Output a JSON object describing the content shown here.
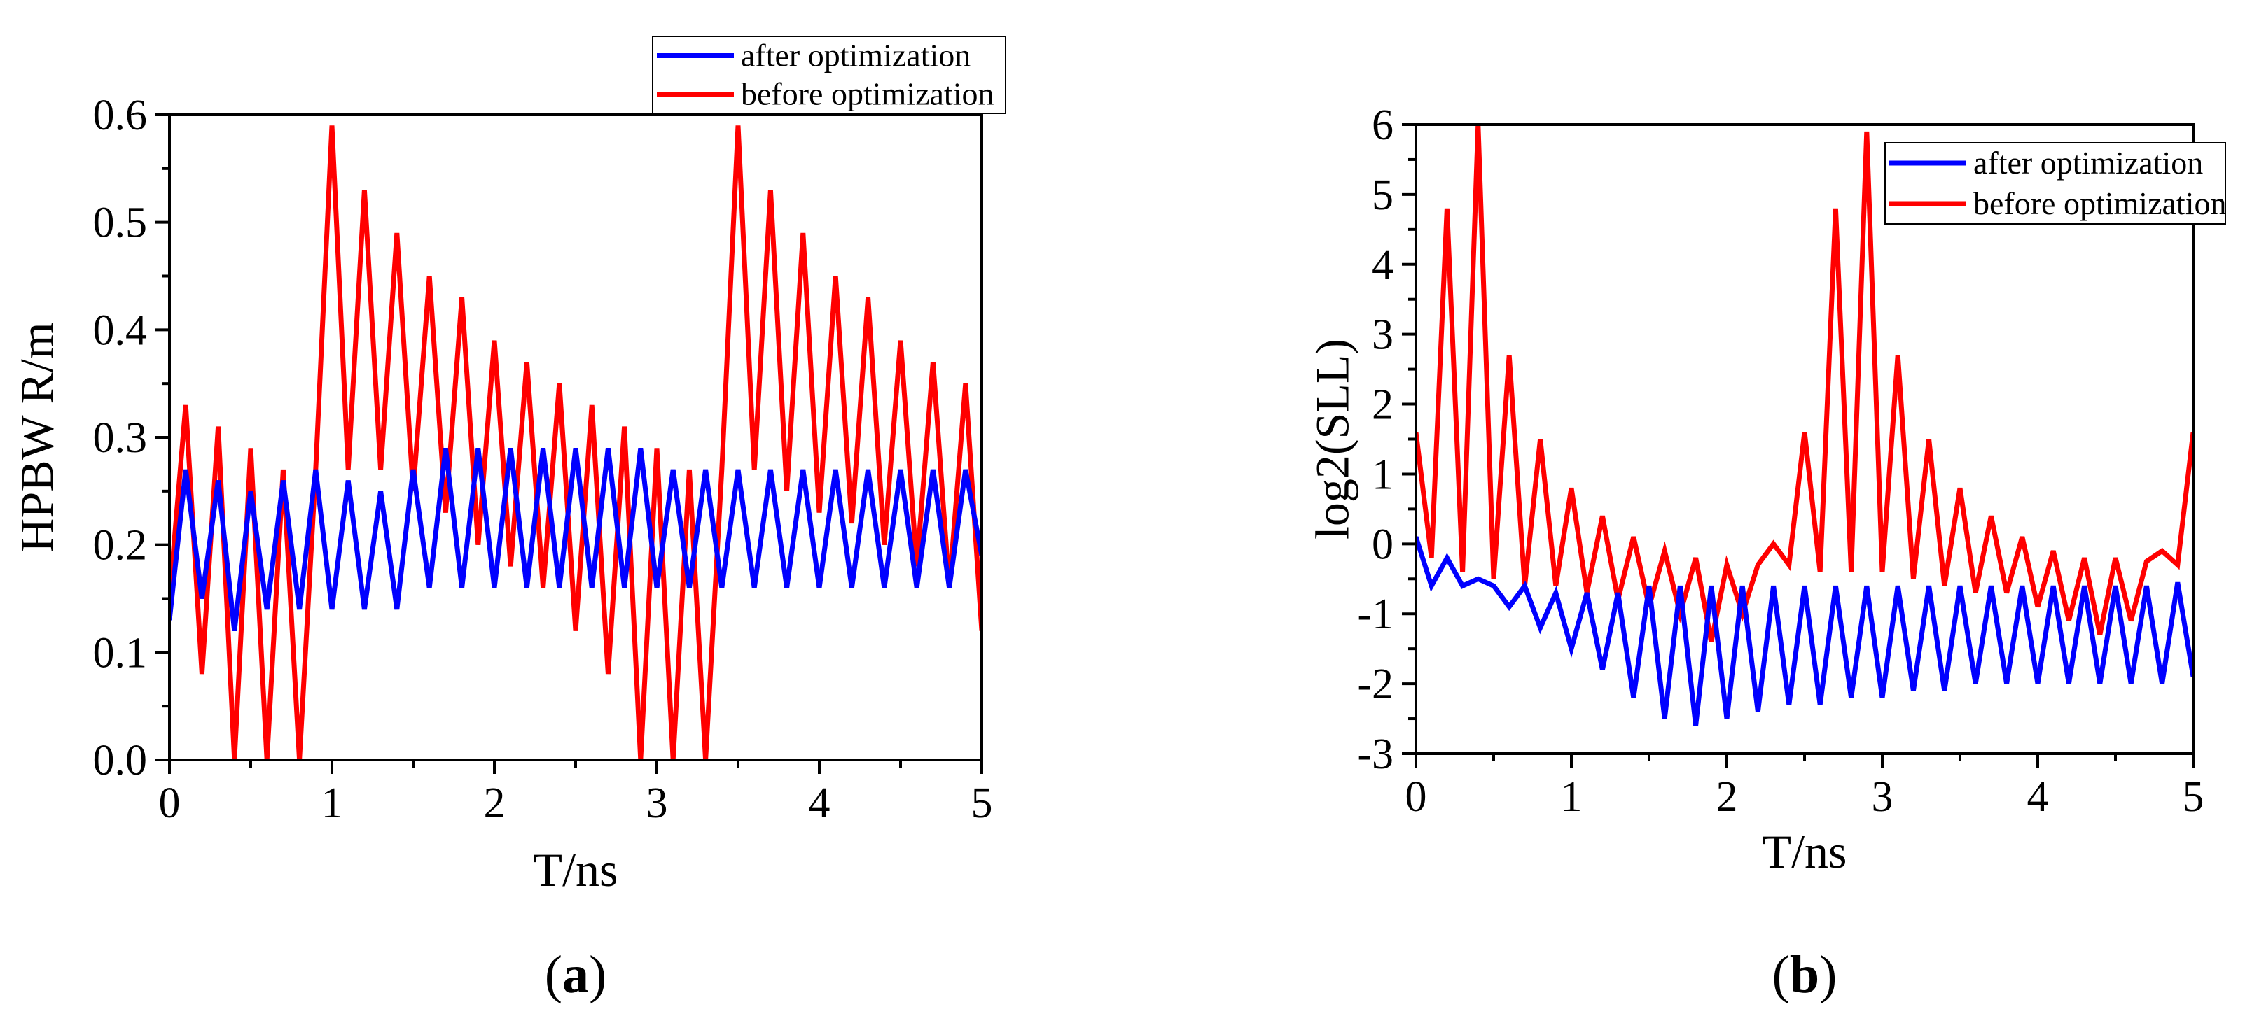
{
  "chart_data": [
    {
      "type": "line",
      "panel_caption": "a",
      "xlabel": "T/ns",
      "ylabel": "HPBW R/m",
      "xlim": [
        0,
        5
      ],
      "ylim": [
        0,
        0.6
      ],
      "xticks": [
        "0",
        "1",
        "2",
        "3",
        "4",
        "5"
      ],
      "yticks": [
        "0.0",
        "0.1",
        "0.2",
        "0.3",
        "0.4",
        "0.5",
        "0.6"
      ],
      "legend_position": "top-right",
      "grid": false,
      "series": [
        {
          "name": "after optimization",
          "color": "#0000ff",
          "x": [
            0,
            0.1,
            0.2,
            0.3,
            0.4,
            0.5,
            0.6,
            0.7,
            0.8,
            0.9,
            1.0,
            1.1,
            1.2,
            1.3,
            1.4,
            1.5,
            1.6,
            1.7,
            1.8,
            1.9,
            2.0,
            2.1,
            2.2,
            2.3,
            2.4,
            2.5,
            2.6,
            2.7,
            2.8,
            2.9,
            3.0,
            3.1,
            3.2,
            3.3,
            3.4,
            3.5,
            3.6,
            3.7,
            3.8,
            3.9,
            4.0,
            4.1,
            4.2,
            4.3,
            4.4,
            4.5,
            4.6,
            4.7,
            4.8,
            4.9,
            5.0
          ],
          "values": [
            0.13,
            0.27,
            0.15,
            0.26,
            0.12,
            0.25,
            0.14,
            0.26,
            0.14,
            0.27,
            0.14,
            0.26,
            0.14,
            0.25,
            0.14,
            0.27,
            0.16,
            0.29,
            0.16,
            0.29,
            0.16,
            0.29,
            0.16,
            0.29,
            0.16,
            0.29,
            0.16,
            0.29,
            0.16,
            0.29,
            0.16,
            0.27,
            0.16,
            0.27,
            0.16,
            0.27,
            0.16,
            0.27,
            0.16,
            0.27,
            0.16,
            0.27,
            0.16,
            0.27,
            0.16,
            0.27,
            0.16,
            0.27,
            0.16,
            0.27,
            0.19
          ]
        },
        {
          "name": "before optimization",
          "color": "#ff0000",
          "x": [
            0,
            0.1,
            0.2,
            0.3,
            0.4,
            0.5,
            0.6,
            0.7,
            0.8,
            0.9,
            1.0,
            1.1,
            1.2,
            1.3,
            1.4,
            1.5,
            1.6,
            1.7,
            1.8,
            1.9,
            2.0,
            2.1,
            2.2,
            2.3,
            2.4,
            2.5,
            2.6,
            2.7,
            2.8,
            2.9,
            3.0,
            3.1,
            3.2,
            3.3,
            3.4,
            3.5,
            3.6,
            3.7,
            3.8,
            3.9,
            4.0,
            4.1,
            4.2,
            4.3,
            4.4,
            4.5,
            4.6,
            4.7,
            4.8,
            4.9,
            5.0
          ],
          "values": [
            0.15,
            0.33,
            0.08,
            0.31,
            0.0,
            0.29,
            0.0,
            0.27,
            0.0,
            0.27,
            0.59,
            0.27,
            0.53,
            0.27,
            0.49,
            0.25,
            0.45,
            0.23,
            0.43,
            0.2,
            0.39,
            0.18,
            0.37,
            0.16,
            0.35,
            0.12,
            0.33,
            0.08,
            0.31,
            0.0,
            0.29,
            0.0,
            0.27,
            0.0,
            0.27,
            0.59,
            0.27,
            0.53,
            0.25,
            0.49,
            0.23,
            0.45,
            0.22,
            0.43,
            0.2,
            0.39,
            0.18,
            0.37,
            0.16,
            0.35,
            0.12
          ]
        }
      ]
    },
    {
      "type": "line",
      "panel_caption": "b",
      "xlabel": "T/ns",
      "ylabel": "log2(SLL)",
      "xlim": [
        0,
        5
      ],
      "ylim": [
        -3,
        6
      ],
      "xticks": [
        "0",
        "1",
        "2",
        "3",
        "4",
        "5"
      ],
      "yticks": [
        "-3",
        "-2",
        "-1",
        "0",
        "1",
        "2",
        "3",
        "4",
        "5",
        "6"
      ],
      "legend_position": "top-right",
      "grid": false,
      "series": [
        {
          "name": "after optimization",
          "color": "#0000ff",
          "x": [
            0,
            0.1,
            0.2,
            0.3,
            0.4,
            0.5,
            0.6,
            0.7,
            0.8,
            0.9,
            1.0,
            1.1,
            1.2,
            1.3,
            1.4,
            1.5,
            1.6,
            1.7,
            1.8,
            1.9,
            2.0,
            2.1,
            2.2,
            2.3,
            2.4,
            2.5,
            2.6,
            2.7,
            2.8,
            2.9,
            3.0,
            3.1,
            3.2,
            3.3,
            3.4,
            3.5,
            3.6,
            3.7,
            3.8,
            3.9,
            4.0,
            4.1,
            4.2,
            4.3,
            4.4,
            4.5,
            4.6,
            4.7,
            4.8,
            4.9,
            5.0
          ],
          "values": [
            0.1,
            -0.6,
            -0.2,
            -0.6,
            -0.5,
            -0.6,
            -0.9,
            -0.6,
            -1.2,
            -0.7,
            -1.5,
            -0.7,
            -1.8,
            -0.7,
            -2.2,
            -0.6,
            -2.5,
            -0.6,
            -2.6,
            -0.6,
            -2.5,
            -0.6,
            -2.4,
            -0.6,
            -2.3,
            -0.6,
            -2.3,
            -0.6,
            -2.2,
            -0.6,
            -2.2,
            -0.6,
            -2.1,
            -0.6,
            -2.1,
            -0.6,
            -2.0,
            -0.6,
            -2.0,
            -0.6,
            -2.0,
            -0.6,
            -2.0,
            -0.6,
            -2.0,
            -0.6,
            -2.0,
            -0.6,
            -2.0,
            -0.55,
            -1.9
          ]
        },
        {
          "name": "before optimization",
          "color": "#ff0000",
          "x": [
            0,
            0.1,
            0.2,
            0.3,
            0.4,
            0.5,
            0.6,
            0.7,
            0.8,
            0.9,
            1.0,
            1.1,
            1.2,
            1.3,
            1.4,
            1.5,
            1.6,
            1.7,
            1.8,
            1.9,
            2.0,
            2.1,
            2.2,
            2.3,
            2.4,
            2.5,
            2.6,
            2.7,
            2.8,
            2.9,
            3.0,
            3.1,
            3.2,
            3.3,
            3.4,
            3.5,
            3.6,
            3.7,
            3.8,
            3.9,
            4.0,
            4.1,
            4.2,
            4.3,
            4.4,
            4.5,
            4.6,
            4.7,
            4.8,
            4.9,
            5.0
          ],
          "values": [
            1.6,
            -0.2,
            4.8,
            -0.4,
            6.0,
            -0.5,
            2.7,
            -0.6,
            1.5,
            -0.6,
            0.8,
            -0.7,
            0.4,
            -0.8,
            0.1,
            -0.9,
            -0.1,
            -1.0,
            -0.2,
            -1.4,
            -0.3,
            -1.0,
            -0.3,
            0.0,
            -0.3,
            1.6,
            -0.4,
            4.8,
            -0.4,
            5.9,
            -0.4,
            2.7,
            -0.5,
            1.5,
            -0.6,
            0.8,
            -0.7,
            0.4,
            -0.7,
            0.1,
            -0.9,
            -0.1,
            -1.1,
            -0.2,
            -1.3,
            -0.2,
            -1.1,
            -0.25,
            -0.1,
            -0.3,
            1.6
          ]
        }
      ]
    }
  ]
}
